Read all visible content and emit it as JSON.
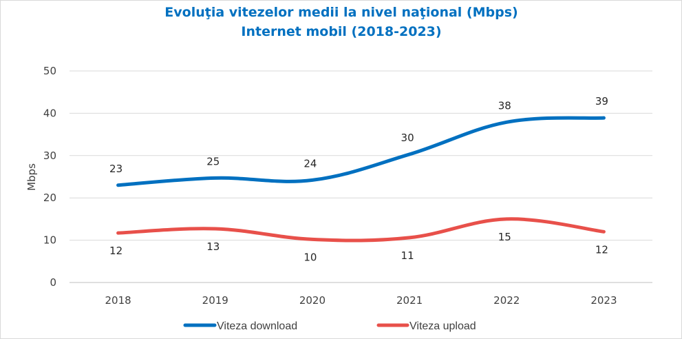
{
  "chart_data": {
    "type": "line",
    "title_line1": "Evoluţia vitezelor medii la nivel naţional (Mbps)",
    "title_line2": "Internet mobil (2018-2023)",
    "ylabel": "Mbps",
    "xlabel": "",
    "ylim": [
      0,
      50
    ],
    "yticks": [
      "0",
      "10",
      "20",
      "30",
      "40",
      "50"
    ],
    "categories": [
      "2018",
      "2019",
      "2020",
      "2021",
      "2022",
      "2023"
    ],
    "grid": "horizontal",
    "legend_position": "bottom",
    "series": [
      {
        "name": "Viteza download",
        "color": "#0070c0",
        "values": [
          23,
          24.7,
          24.2,
          30.3,
          37.9,
          38.9
        ],
        "labels": [
          "23",
          "25",
          "24",
          "30",
          "38",
          "39"
        ],
        "label_position": "above"
      },
      {
        "name": "Viteza upload",
        "color": "#e8504a",
        "values": [
          11.7,
          12.7,
          10.2,
          10.6,
          15,
          12
        ],
        "labels": [
          "12",
          "13",
          "10",
          "11",
          "15",
          "12"
        ],
        "label_position": "below"
      }
    ]
  }
}
